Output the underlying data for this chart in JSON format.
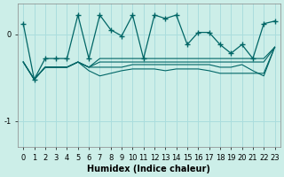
{
  "xlabel": "Humidex (Indice chaleur)",
  "background_color": "#cceee8",
  "grid_color": "#aadddd",
  "line_color": "#006666",
  "x_values": [
    0,
    1,
    2,
    3,
    4,
    5,
    6,
    7,
    8,
    9,
    10,
    11,
    12,
    13,
    14,
    15,
    16,
    17,
    18,
    19,
    20,
    21,
    22,
    23
  ],
  "main_series": [
    0.12,
    -0.52,
    -0.28,
    -0.28,
    -0.28,
    0.22,
    -0.28,
    0.22,
    0.05,
    -0.02,
    0.22,
    -0.28,
    0.22,
    0.18,
    0.22,
    -0.12,
    0.02,
    0.02,
    -0.12,
    -0.22,
    -0.12,
    -0.28,
    0.12,
    0.15
  ],
  "flat_lines": [
    [
      -0.32,
      -0.52,
      -0.38,
      -0.38,
      -0.38,
      -0.32,
      -0.38,
      -0.32,
      -0.32,
      -0.32,
      -0.32,
      -0.32,
      -0.32,
      -0.32,
      -0.32,
      -0.32,
      -0.32,
      -0.32,
      -0.32,
      -0.32,
      -0.32,
      -0.32,
      -0.32,
      -0.15
    ],
    [
      -0.32,
      -0.52,
      -0.38,
      -0.38,
      -0.38,
      -0.32,
      -0.38,
      -0.38,
      -0.38,
      -0.38,
      -0.35,
      -0.35,
      -0.35,
      -0.35,
      -0.35,
      -0.35,
      -0.35,
      -0.35,
      -0.38,
      -0.38,
      -0.35,
      -0.42,
      -0.48,
      -0.15
    ],
    [
      -0.32,
      -0.52,
      -0.38,
      -0.38,
      -0.38,
      -0.32,
      -0.42,
      -0.48,
      -0.45,
      -0.42,
      -0.4,
      -0.4,
      -0.4,
      -0.42,
      -0.4,
      -0.4,
      -0.4,
      -0.42,
      -0.45,
      -0.45,
      -0.45,
      -0.45,
      -0.45,
      -0.15
    ],
    [
      -0.32,
      -0.52,
      -0.38,
      -0.38,
      -0.38,
      -0.32,
      -0.38,
      -0.28,
      -0.28,
      -0.28,
      -0.28,
      -0.28,
      -0.28,
      -0.28,
      -0.28,
      -0.28,
      -0.28,
      -0.28,
      -0.28,
      -0.28,
      -0.28,
      -0.28,
      -0.28,
      -0.15
    ]
  ],
  "yticks": [
    0,
    -1
  ],
  "ylim": [
    -1.3,
    0.35
  ],
  "xlim": [
    -0.5,
    23.5
  ]
}
